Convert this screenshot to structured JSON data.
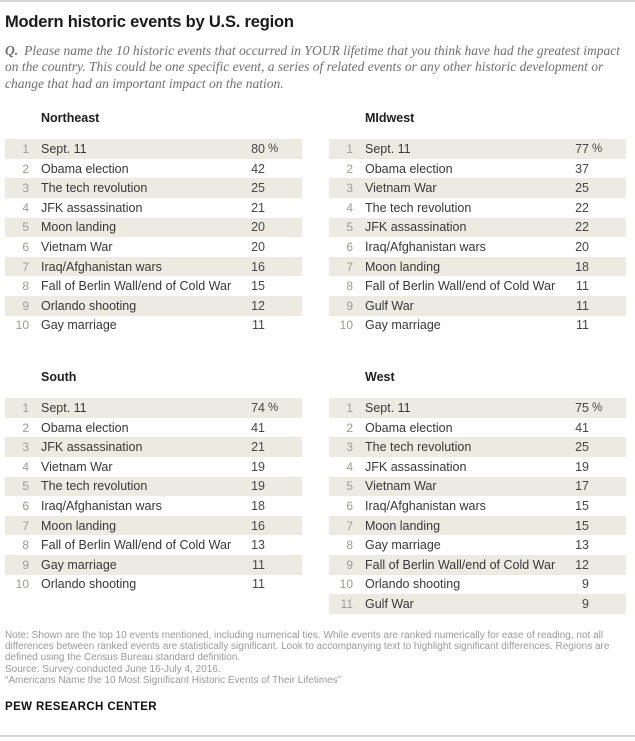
{
  "header": {
    "title": "Modern historic events by U.S. region",
    "question_prefix": "Q.",
    "question_text": "Please name the 10 historic events that occurred in YOUR lifetime that you think have had the greatest impact on the country. This could be one specific event, a series of related events or any other historic development or change that had an important impact on the nation."
  },
  "chart_data": [
    {
      "type": "table",
      "region": "Northeast",
      "columns": [
        "rank",
        "event",
        "percent"
      ],
      "rows": [
        {
          "rank": "1",
          "event": "Sept. 11",
          "value": "80",
          "suffix": "%"
        },
        {
          "rank": "2",
          "event": "Obama election",
          "value": "42",
          "suffix": ""
        },
        {
          "rank": "3",
          "event": "The tech revolution",
          "value": "25",
          "suffix": ""
        },
        {
          "rank": "4",
          "event": "JFK assassination",
          "value": "21",
          "suffix": ""
        },
        {
          "rank": "5",
          "event": "Moon landing",
          "value": "20",
          "suffix": ""
        },
        {
          "rank": "6",
          "event": "Vietnam War",
          "value": "20",
          "suffix": ""
        },
        {
          "rank": "7",
          "event": "Iraq/Afghanistan wars",
          "value": "16",
          "suffix": ""
        },
        {
          "rank": "8",
          "event": "Fall of Berlin Wall/end of Cold War",
          "value": "15",
          "suffix": ""
        },
        {
          "rank": "9",
          "event": "Orlando shooting",
          "value": "12",
          "suffix": ""
        },
        {
          "rank": "10",
          "event": "Gay marriage",
          "value": "11",
          "suffix": ""
        }
      ]
    },
    {
      "type": "table",
      "region": "MIdwest",
      "columns": [
        "rank",
        "event",
        "percent"
      ],
      "rows": [
        {
          "rank": "1",
          "event": "Sept. 11",
          "value": "77",
          "suffix": "%"
        },
        {
          "rank": "2",
          "event": "Obama election",
          "value": "37",
          "suffix": ""
        },
        {
          "rank": "3",
          "event": "Vietnam War",
          "value": "25",
          "suffix": ""
        },
        {
          "rank": "4",
          "event": "The tech revolution",
          "value": "22",
          "suffix": ""
        },
        {
          "rank": "5",
          "event": "JFK assassination",
          "value": "22",
          "suffix": ""
        },
        {
          "rank": "6",
          "event": "Iraq/Afghanistan wars",
          "value": "20",
          "suffix": ""
        },
        {
          "rank": "7",
          "event": "Moon landing",
          "value": "18",
          "suffix": ""
        },
        {
          "rank": "8",
          "event": "Fall of Berlin Wall/end of Cold War",
          "value": "11",
          "suffix": ""
        },
        {
          "rank": "9",
          "event": "Gulf War",
          "value": "11",
          "suffix": ""
        },
        {
          "rank": "10",
          "event": "Gay marriage",
          "value": "11",
          "suffix": ""
        }
      ]
    },
    {
      "type": "table",
      "region": "South",
      "columns": [
        "rank",
        "event",
        "percent"
      ],
      "rows": [
        {
          "rank": "1",
          "event": "Sept. 11",
          "value": "74",
          "suffix": "%"
        },
        {
          "rank": "2",
          "event": "Obama election",
          "value": "41",
          "suffix": ""
        },
        {
          "rank": "3",
          "event": "JFK assassination",
          "value": "21",
          "suffix": ""
        },
        {
          "rank": "4",
          "event": "Vietnam War",
          "value": "19",
          "suffix": ""
        },
        {
          "rank": "5",
          "event": "The tech revolution",
          "value": "19",
          "suffix": ""
        },
        {
          "rank": "6",
          "event": "Iraq/Afghanistan wars",
          "value": "18",
          "suffix": ""
        },
        {
          "rank": "7",
          "event": "Moon landing",
          "value": "16",
          "suffix": ""
        },
        {
          "rank": "8",
          "event": "Fall of Berlin Wall/end of Cold War",
          "value": "13",
          "suffix": ""
        },
        {
          "rank": "9",
          "event": "Gay marriage",
          "value": "11",
          "suffix": ""
        },
        {
          "rank": "10",
          "event": "Orlando shooting",
          "value": "11",
          "suffix": ""
        }
      ]
    },
    {
      "type": "table",
      "region": "West",
      "columns": [
        "rank",
        "event",
        "percent"
      ],
      "rows": [
        {
          "rank": "1",
          "event": "Sept. 11",
          "value": "75",
          "suffix": "%"
        },
        {
          "rank": "2",
          "event": "Obama election",
          "value": "41",
          "suffix": ""
        },
        {
          "rank": "3",
          "event": "The tech revolution",
          "value": "25",
          "suffix": ""
        },
        {
          "rank": "4",
          "event": "JFK assassination",
          "value": "19",
          "suffix": ""
        },
        {
          "rank": "5",
          "event": "Vietnam War",
          "value": "17",
          "suffix": ""
        },
        {
          "rank": "6",
          "event": "Iraq/Afghanistan wars",
          "value": "15",
          "suffix": ""
        },
        {
          "rank": "7",
          "event": "Moon landing",
          "value": "15",
          "suffix": ""
        },
        {
          "rank": "8",
          "event": "Gay marriage",
          "value": "13",
          "suffix": ""
        },
        {
          "rank": "9",
          "event": "Fall of Berlin Wall/end of Cold War",
          "value": "12",
          "suffix": ""
        },
        {
          "rank": "10",
          "event": "Orlando shooting",
          "value": "9",
          "suffix": ""
        },
        {
          "rank": "11",
          "event": "Gulf War",
          "value": "9",
          "suffix": ""
        }
      ]
    }
  ],
  "footer": {
    "note": "Note: Shown are the top 10 events mentioned, including numerical ties. While events are ranked numerically for ease of reading, not all differences between ranked events are statistically significant. Look to accompanying text to highlight significant differences. Regions are defined using the Census Bureau standard definition.",
    "source": "Source: Survey conducted June 16-July 4, 2016.",
    "quote": "“Americans Name the 10 Most Significant Historic Events of Their Lifetimes”",
    "brand": "PEW RESEARCH CENTER"
  },
  "colors": {
    "stripe": "#ECEBE1",
    "rule": "#D8D8D8",
    "title_text": "#1A1A1A",
    "question_text": "#6F6F6F",
    "rank_text": "#9C9C94",
    "event_text": "#383838",
    "note_text": "#9A9A9A"
  }
}
